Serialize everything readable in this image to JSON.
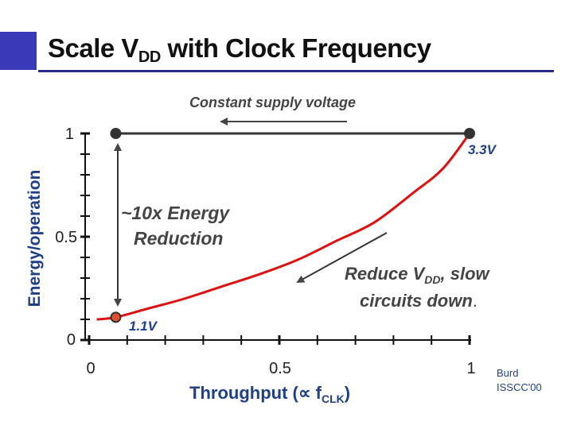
{
  "slide": {
    "title_main": "Scale V",
    "title_sub": "DD",
    "title_rest": " with Clock Frequency",
    "credit_line1": "Burd",
    "credit_line2": "ISSCC'00"
  },
  "chart_data": {
    "type": "line",
    "xlabel": "Throughput (∝ f",
    "xlabel_sub": "CLK",
    "xlabel_end": ")",
    "ylabel": "Energy/operation",
    "xlim": [
      0,
      1
    ],
    "ylim": [
      0,
      1
    ],
    "x_ticks": [
      "0",
      "0.5",
      "1"
    ],
    "y_ticks": [
      "0",
      "0.5",
      "1"
    ],
    "series": [
      {
        "name": "scaled",
        "color": "#e01010",
        "x": [
          0.02,
          0.07,
          0.15,
          0.25,
          0.35,
          0.45,
          0.55,
          0.65,
          0.75,
          0.85,
          0.93,
          1.0
        ],
        "y": [
          0.1,
          0.11,
          0.15,
          0.2,
          0.26,
          0.32,
          0.39,
          0.48,
          0.57,
          0.71,
          0.83,
          1.0
        ]
      },
      {
        "name": "constant",
        "color": "#333333",
        "x": [
          0.07,
          1.0
        ],
        "y": [
          1.0,
          1.0
        ]
      }
    ],
    "points": [
      {
        "label": "3.3V",
        "x": 1.0,
        "y": 1.0
      },
      {
        "label": "1.1V",
        "x": 0.07,
        "y": 0.11
      }
    ],
    "annotations": {
      "constant_supply": "Constant supply voltage",
      "energy_reduction_1": "~10x Energy",
      "energy_reduction_2": "Reduction",
      "reduce_1_a": "Reduce V",
      "reduce_1_sub": "DD",
      "reduce_1_b": ", slow",
      "reduce_2": "circuits down",
      "reduce_2_end": "."
    }
  }
}
